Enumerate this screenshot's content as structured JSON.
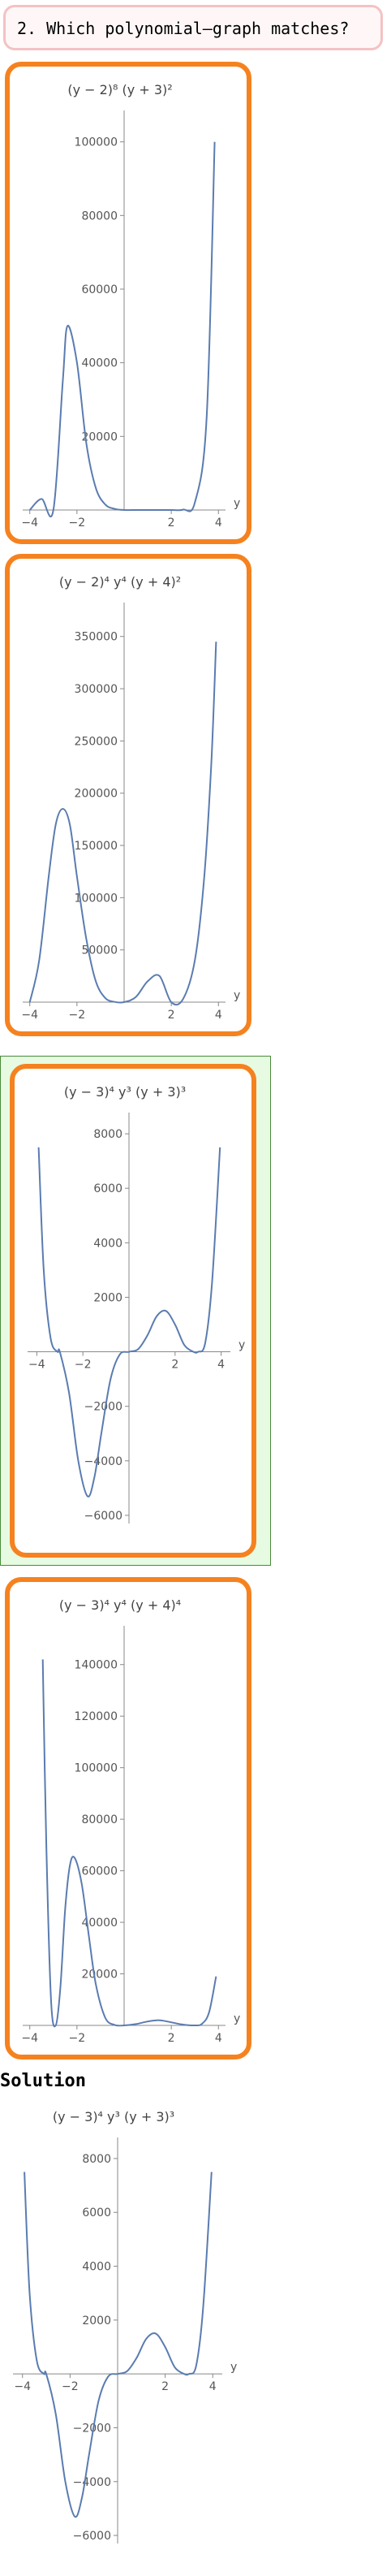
{
  "question": {
    "text": "2. Which polynomial–graph matches?"
  },
  "solution_heading": "Solution",
  "colors": {
    "accent_border": "#f5821f",
    "curve": "#5a7cb0",
    "highlight_bg": "#e6fbe1",
    "question_border": "#f4c2c4"
  },
  "options": [
    {
      "title": "(y − 2)⁸ (y + 3)²",
      "selected": false
    },
    {
      "title": "(y − 2)⁴ y⁴ (y + 4)²",
      "selected": false
    },
    {
      "title": "(y − 3)⁴ y³ (y + 3)³",
      "selected": true
    },
    {
      "title": "(y − 3)⁴ y⁴ (y + 4)⁴",
      "selected": false
    }
  ],
  "solution": {
    "title": "(y − 3)⁴ y³ (y + 3)³"
  },
  "chart_data": [
    {
      "type": "line",
      "title": "(y − 2)⁸ (y + 3)²",
      "xlabel": "y",
      "ylabel": "",
      "xlim": [
        -4.3,
        4.3
      ],
      "ylim": [
        0,
        105000
      ],
      "x_ticks": [
        -4,
        -2,
        2,
        4
      ],
      "x_tick_labels": [
        "−4",
        "−2",
        "2",
        "4"
      ],
      "y_ticks": [
        20000,
        40000,
        60000,
        80000,
        100000
      ],
      "y_tick_labels": [
        "20000",
        "40000",
        "60000",
        "80000",
        "100000"
      ],
      "series": [
        {
          "x": [
            -4.0,
            -3.5,
            -3.0,
            -2.6,
            -2.4,
            -2.0,
            -1.6,
            -1.2,
            -0.8,
            -0.4,
            0,
            0.5,
            1,
            1.5,
            2,
            2.5,
            3,
            3.5,
            3.84
          ],
          "y": [
            0,
            3000,
            0,
            35000,
            50000,
            40000,
            18000,
            6000,
            1500,
            300,
            0,
            0,
            0,
            0,
            0,
            100,
            2000,
            25000,
            100000
          ]
        }
      ]
    },
    {
      "type": "line",
      "title": "(y − 2)⁴ y⁴ (y + 4)²",
      "xlabel": "y",
      "ylabel": "",
      "xlim": [
        -4.3,
        4.3
      ],
      "ylim": [
        0,
        370000
      ],
      "x_ticks": [
        -4,
        -2,
        2,
        4
      ],
      "x_tick_labels": [
        "−4",
        "−2",
        "2",
        "4"
      ],
      "y_ticks": [
        50000,
        100000,
        150000,
        200000,
        250000,
        300000,
        350000
      ],
      "y_tick_labels": [
        "50000",
        "100000",
        "150000",
        "200000",
        "250000",
        "300000",
        "350000"
      ],
      "series": [
        {
          "x": [
            -4.0,
            -3.6,
            -3.2,
            -2.9,
            -2.6,
            -2.3,
            -2.0,
            -1.6,
            -1.2,
            -0.8,
            -0.4,
            0,
            0.5,
            1,
            1.5,
            2,
            2.5,
            3,
            3.4,
            3.7,
            3.9
          ],
          "y": [
            0,
            40000,
            120000,
            170000,
            185000,
            170000,
            120000,
            60000,
            20000,
            4000,
            200,
            0,
            5000,
            20000,
            25000,
            0,
            3000,
            40000,
            120000,
            230000,
            345000
          ]
        }
      ]
    },
    {
      "type": "line",
      "title": "(y − 3)⁴ y³ (y + 3)³",
      "xlabel": "y",
      "ylabel": "",
      "xlim": [
        -4.4,
        4.4
      ],
      "ylim": [
        -6300,
        8300
      ],
      "x_ticks": [
        -4,
        -2,
        2,
        4
      ],
      "x_tick_labels": [
        "−4",
        "−2",
        "2",
        "4"
      ],
      "y_ticks": [
        -6000,
        -4000,
        -2000,
        2000,
        4000,
        6000,
        8000
      ],
      "y_tick_labels": [
        "−6000",
        "−4000",
        "−2000",
        "2000",
        "4000",
        "6000",
        "8000"
      ],
      "series": [
        {
          "x": [
            -3.92,
            -3.7,
            -3.4,
            -3.1,
            -3.0,
            -2.6,
            -2.2,
            -1.8,
            -1.5,
            -1.2,
            -0.8,
            -0.4,
            0,
            0.4,
            0.8,
            1.2,
            1.6,
            2.0,
            2.4,
            2.8,
            3.0,
            3.3,
            3.6,
            3.95
          ],
          "y": [
            7500,
            3000,
            500,
            0,
            0,
            -1500,
            -4000,
            -5300,
            -4600,
            -3000,
            -1000,
            -100,
            0,
            100,
            600,
            1300,
            1500,
            1000,
            250,
            0,
            0,
            300,
            2500,
            7500
          ]
        }
      ]
    },
    {
      "type": "line",
      "title": "(y − 3)⁴ y⁴ (y + 4)⁴",
      "xlabel": "y",
      "ylabel": "",
      "xlim": [
        -4.3,
        4.3
      ],
      "ylim": [
        0,
        150000
      ],
      "x_ticks": [
        -4,
        -2,
        2,
        4
      ],
      "x_tick_labels": [
        "−4",
        "−2",
        "2",
        "4"
      ],
      "y_ticks": [
        20000,
        40000,
        60000,
        80000,
        100000,
        120000,
        140000
      ],
      "y_tick_labels": [
        "20000",
        "40000",
        "60000",
        "80000",
        "100000",
        "120000",
        "140000"
      ],
      "series": [
        {
          "x": [
            -3.45,
            -3.3,
            -3.1,
            -2.9,
            -2.7,
            -2.5,
            -2.3,
            -2.1,
            -1.8,
            -1.5,
            -1.2,
            -0.8,
            -0.4,
            0,
            0.5,
            1,
            1.5,
            2,
            2.5,
            3,
            3.3,
            3.6,
            3.9
          ],
          "y": [
            142000,
            70000,
            10000,
            0,
            15000,
            45000,
            62000,
            65000,
            55000,
            35000,
            16000,
            3000,
            200,
            0,
            500,
            1500,
            2000,
            1200,
            300,
            0,
            600,
            5000,
            19000
          ]
        }
      ]
    },
    {
      "type": "line",
      "title": "(y − 3)⁴ y³ (y + 3)³",
      "xlabel": "y",
      "ylabel": "",
      "xlim": [
        -4.4,
        4.4
      ],
      "ylim": [
        -6300,
        8300
      ],
      "x_ticks": [
        -4,
        -2,
        2,
        4
      ],
      "x_tick_labels": [
        "−4",
        "−2",
        "2",
        "4"
      ],
      "y_ticks": [
        -6000,
        -4000,
        -2000,
        2000,
        4000,
        6000,
        8000
      ],
      "y_tick_labels": [
        "−6000",
        "−4000",
        "−2000",
        "2000",
        "4000",
        "6000",
        "8000"
      ],
      "series": [
        {
          "x": [
            -3.92,
            -3.7,
            -3.4,
            -3.1,
            -3.0,
            -2.6,
            -2.2,
            -1.8,
            -1.5,
            -1.2,
            -0.8,
            -0.4,
            0,
            0.4,
            0.8,
            1.2,
            1.6,
            2.0,
            2.4,
            2.8,
            3.0,
            3.3,
            3.6,
            3.95
          ],
          "y": [
            7500,
            3000,
            500,
            0,
            0,
            -1500,
            -4000,
            -5300,
            -4600,
            -3000,
            -1000,
            -100,
            0,
            100,
            600,
            1300,
            1500,
            1000,
            250,
            0,
            0,
            300,
            2500,
            7500
          ]
        }
      ]
    }
  ]
}
